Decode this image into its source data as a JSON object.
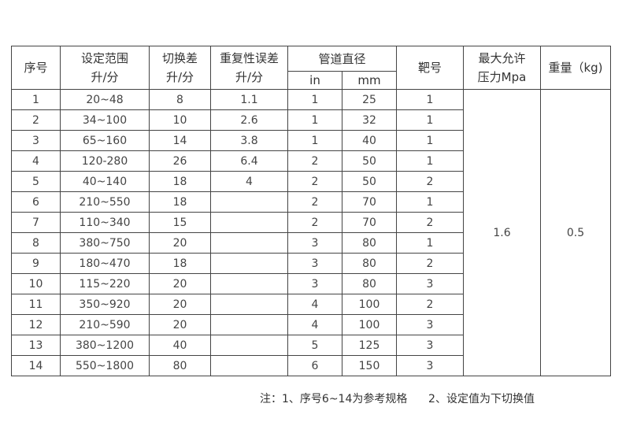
{
  "table": {
    "headers": {
      "seq": "序号",
      "range": [
        "设定范围",
        "升/分"
      ],
      "switch_diff": [
        "切换差",
        "升/分"
      ],
      "repeat_error": [
        "重复性误差",
        "升/分"
      ],
      "pipe_diameter": "管道直径",
      "pipe_in": "in",
      "pipe_mm": "mm",
      "target": "靶号",
      "max_pressure": [
        "最大允许",
        "压力Mpa"
      ],
      "weight": "重量（kg)"
    },
    "max_pressure_value": "1.6",
    "weight_value": "0.5",
    "rows": [
      [
        "1",
        "20~48",
        "8",
        "1.1",
        "1",
        "25",
        "1"
      ],
      [
        "2",
        "34~100",
        "10",
        "2.6",
        "1",
        "32",
        "1"
      ],
      [
        "3",
        "65~160",
        "14",
        "3.8",
        "1",
        "40",
        "1"
      ],
      [
        "4",
        "120-280",
        "26",
        "6.4",
        "2",
        "50",
        "1"
      ],
      [
        "5",
        "40~140",
        "18",
        "4",
        "2",
        "50",
        "2"
      ],
      [
        "6",
        "210~550",
        "18",
        "",
        "2",
        "70",
        "1"
      ],
      [
        "7",
        "110~340",
        "15",
        "",
        "2",
        "70",
        "2"
      ],
      [
        "8",
        "380~750",
        "20",
        "",
        "3",
        "80",
        "1"
      ],
      [
        "9",
        "180~470",
        "18",
        "",
        "3",
        "80",
        "2"
      ],
      [
        "10",
        "115~220",
        "20",
        "",
        "3",
        "80",
        "3"
      ],
      [
        "11",
        "350~920",
        "20",
        "",
        "4",
        "100",
        "2"
      ],
      [
        "12",
        "210~590",
        "20",
        "",
        "4",
        "100",
        "3"
      ],
      [
        "13",
        "380~1200",
        "40",
        "",
        "5",
        "125",
        "3"
      ],
      [
        "14",
        "550~1800",
        "80",
        "",
        "6",
        "150",
        "3"
      ]
    ]
  },
  "note": "注：1、序号6~14为参考规格      2、设定值为下切换值"
}
